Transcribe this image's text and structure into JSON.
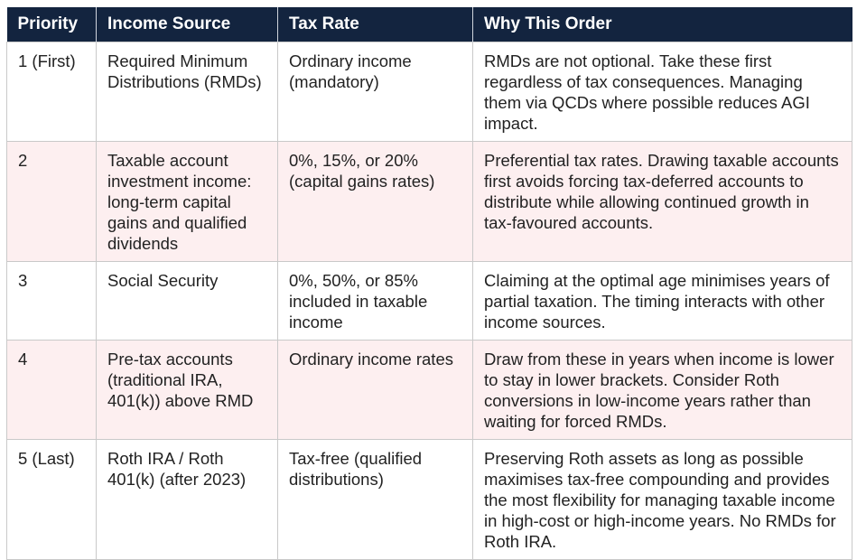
{
  "table": {
    "headers": [
      "Priority",
      "Income Source",
      "Tax Rate",
      "Why This Order"
    ],
    "rows": [
      {
        "priority": "1 (First)",
        "source": "Required Minimum Distributions (RMDs)",
        "rate": "Ordinary income (mandatory)",
        "why": "RMDs are not optional. Take these first regardless of tax consequences. Managing them via QCDs where possible reduces AGI impact."
      },
      {
        "priority": "2",
        "source": "Taxable account investment income: long-term capital gains and qualified dividends",
        "rate": "0%, 15%, or 20% (capital gains rates)",
        "why": "Preferential tax rates. Drawing taxable accounts first avoids forcing tax-deferred accounts to distribute while allowing continued growth in tax-favoured accounts."
      },
      {
        "priority": "3",
        "source": "Social Security",
        "rate": "0%, 50%, or 85% included in taxable income",
        "why": "Claiming at the optimal age minimises years of partial taxation. The timing interacts with other income sources."
      },
      {
        "priority": "4",
        "source": "Pre-tax accounts (traditional IRA, 401(k)) above RMD",
        "rate": "Ordinary income rates",
        "why": "Draw from these in years when income is lower to stay in lower brackets. Consider Roth conversions in low-income years rather than waiting for forced RMDs."
      },
      {
        "priority": "5 (Last)",
        "source": "Roth IRA / Roth 401(k) (after 2023)",
        "rate": "Tax-free (qualified distributions)",
        "why": "Preserving Roth assets as long as possible maximises tax-free compounding and provides the most flexibility for managing taxable income in high-cost or high-income years. No RMDs for Roth IRA."
      }
    ],
    "colors": {
      "header_bg": "#13243f",
      "header_text": "#ffffff",
      "alt_row_bg": "#fdeff0",
      "row_bg": "#ffffff"
    }
  }
}
